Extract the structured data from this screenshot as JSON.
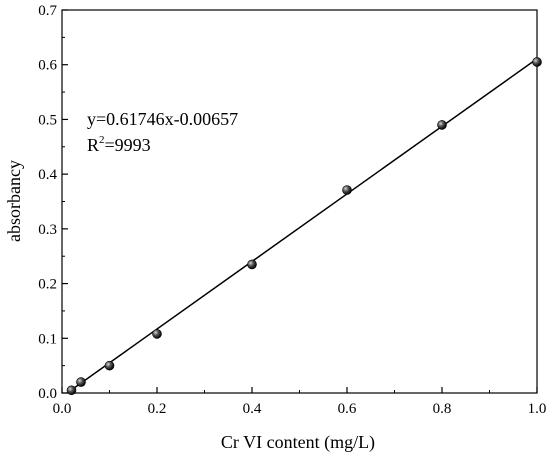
{
  "chart_data": {
    "type": "scatter",
    "title": "",
    "xlabel": "Cr VI content (mg/L)",
    "ylabel": "absorbancy",
    "xlim": [
      0,
      1.0
    ],
    "ylim": [
      0,
      0.7
    ],
    "xticks": [
      "0.0",
      "0.2",
      "0.4",
      "0.6",
      "0.8",
      "1.0"
    ],
    "yticks": [
      "0.0",
      "0.1",
      "0.2",
      "0.3",
      "0.4",
      "0.5",
      "0.6",
      "0.7"
    ],
    "grid": false,
    "series": [
      {
        "x": [
          0.02,
          0.04,
          0.1,
          0.2,
          0.4,
          0.6,
          0.8,
          1.0
        ],
        "y": [
          0.005,
          0.02,
          0.05,
          0.108,
          0.235,
          0.371,
          0.49,
          0.605
        ],
        "marker": "sphere",
        "color": "#000000"
      }
    ],
    "fit_line": {
      "slope": 0.61746,
      "intercept": -0.00657,
      "x_range": [
        0.0,
        1.0
      ]
    },
    "annotations": {
      "equation": "y=0.61746x-0.00657",
      "r2_prefix": "R",
      "r2_sup": "2",
      "r2_value": "=9993"
    }
  }
}
